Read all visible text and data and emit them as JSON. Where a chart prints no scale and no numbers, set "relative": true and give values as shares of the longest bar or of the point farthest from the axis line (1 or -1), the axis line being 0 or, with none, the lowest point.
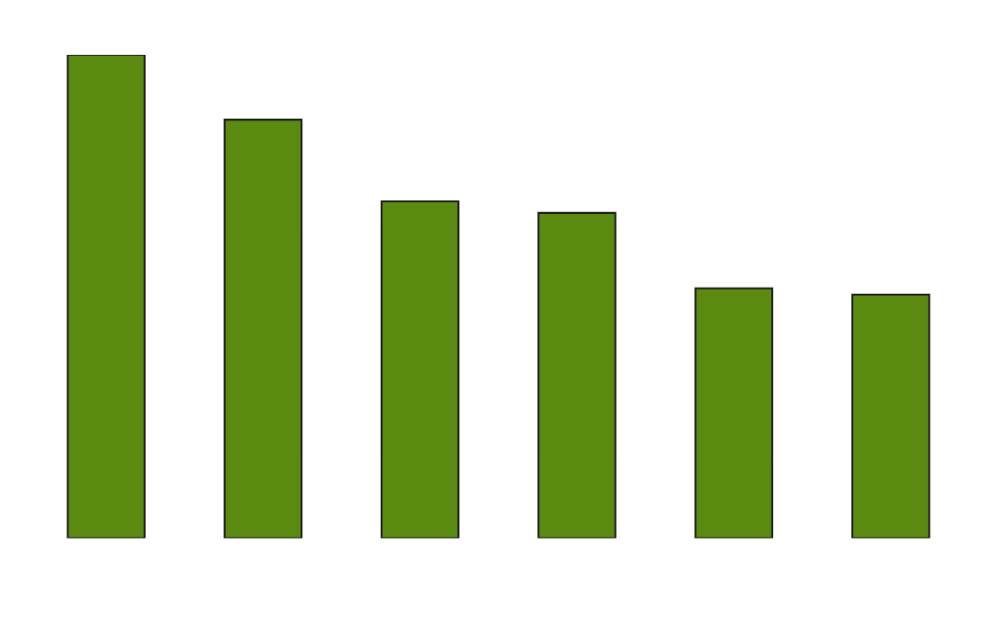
{
  "chart_data": {
    "type": "bar",
    "relative": true,
    "categories": [
      null,
      null,
      null,
      null,
      null,
      null
    ],
    "values": [
      1,
      0.866,
      0.697,
      0.673,
      0.517,
      0.504
    ],
    "color": "#5a8a10",
    "legend": false,
    "tick_labels": false
  }
}
